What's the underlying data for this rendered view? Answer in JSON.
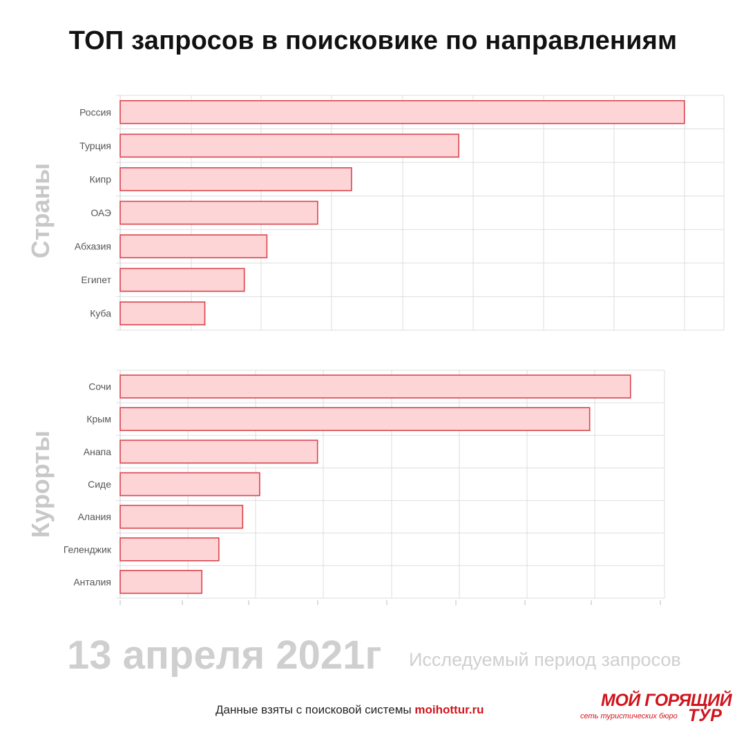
{
  "title": "ТОП запросов в поисковике по направлениям",
  "chart_data": [
    {
      "type": "bar",
      "orientation": "horizontal",
      "group_label": "Страны",
      "categories": [
        "Россия",
        "Турция",
        "Кипр",
        "ОАЭ",
        "Абхазия",
        "Египет",
        "Куба"
      ],
      "values": [
        100,
        60,
        41,
        35,
        26,
        22,
        15
      ],
      "xlim": [
        0,
        107
      ],
      "grid": true,
      "tick_labels_shown": false
    },
    {
      "type": "bar",
      "orientation": "horizontal",
      "group_label": "Курорты",
      "categories": [
        "Сочи",
        "Крым",
        "Анапа",
        "Сиде",
        "Алания",
        "Геленджик",
        "Анталия"
      ],
      "values": [
        75,
        69,
        29,
        20.5,
        18,
        14.5,
        12
      ],
      "xlim": [
        0,
        80
      ],
      "grid": true,
      "tick_labels_shown": false
    }
  ],
  "footer": {
    "date": "13 апреля 2021г",
    "period_label": "Исследуемый период запросов",
    "source_text": "Данные взяты с поисковой системы ",
    "source_site": "moihottur.ru"
  },
  "logo": {
    "line1": "МОЙ ГОРЯЩИЙ",
    "line2": "сеть туристических бюро",
    "line3": "ТУР"
  },
  "colors": {
    "bar_fill": "#fdd5d7",
    "bar_stroke": "#d9434d",
    "grid": "#dddddd",
    "side_label": "#c8c8c8",
    "brand": "#d0141c"
  }
}
